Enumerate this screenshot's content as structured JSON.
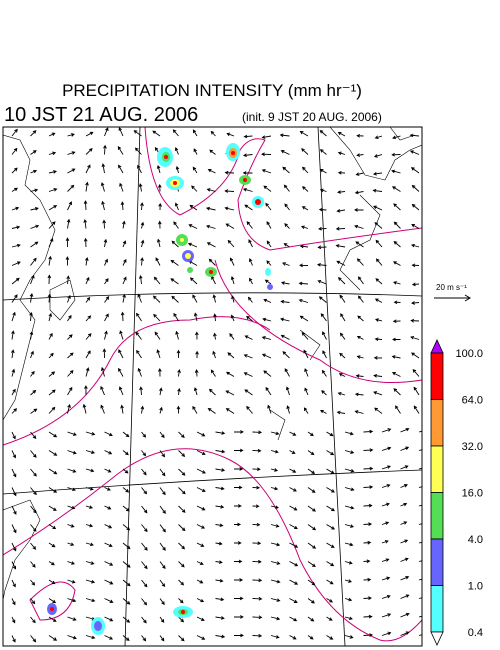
{
  "header": {
    "title": "PRECIPITATION INTENSITY (mm hr⁻¹)",
    "valid_time": "10 JST 21 AUG. 2006",
    "init_time": "(init. 9 JST 20 AUG. 2006)"
  },
  "vector_legend": {
    "label": "20 m s⁻¹"
  },
  "colorbar": {
    "labels": [
      "100.0",
      "64.0",
      "32.0",
      "16.0",
      "4.0",
      "1.0",
      "0.4"
    ],
    "colors": [
      "#b200ff",
      "#ff0000",
      "#ff9933",
      "#ffff55",
      "#55dd55",
      "#6666ff",
      "#55ffff",
      "#ffffff"
    ]
  }
}
